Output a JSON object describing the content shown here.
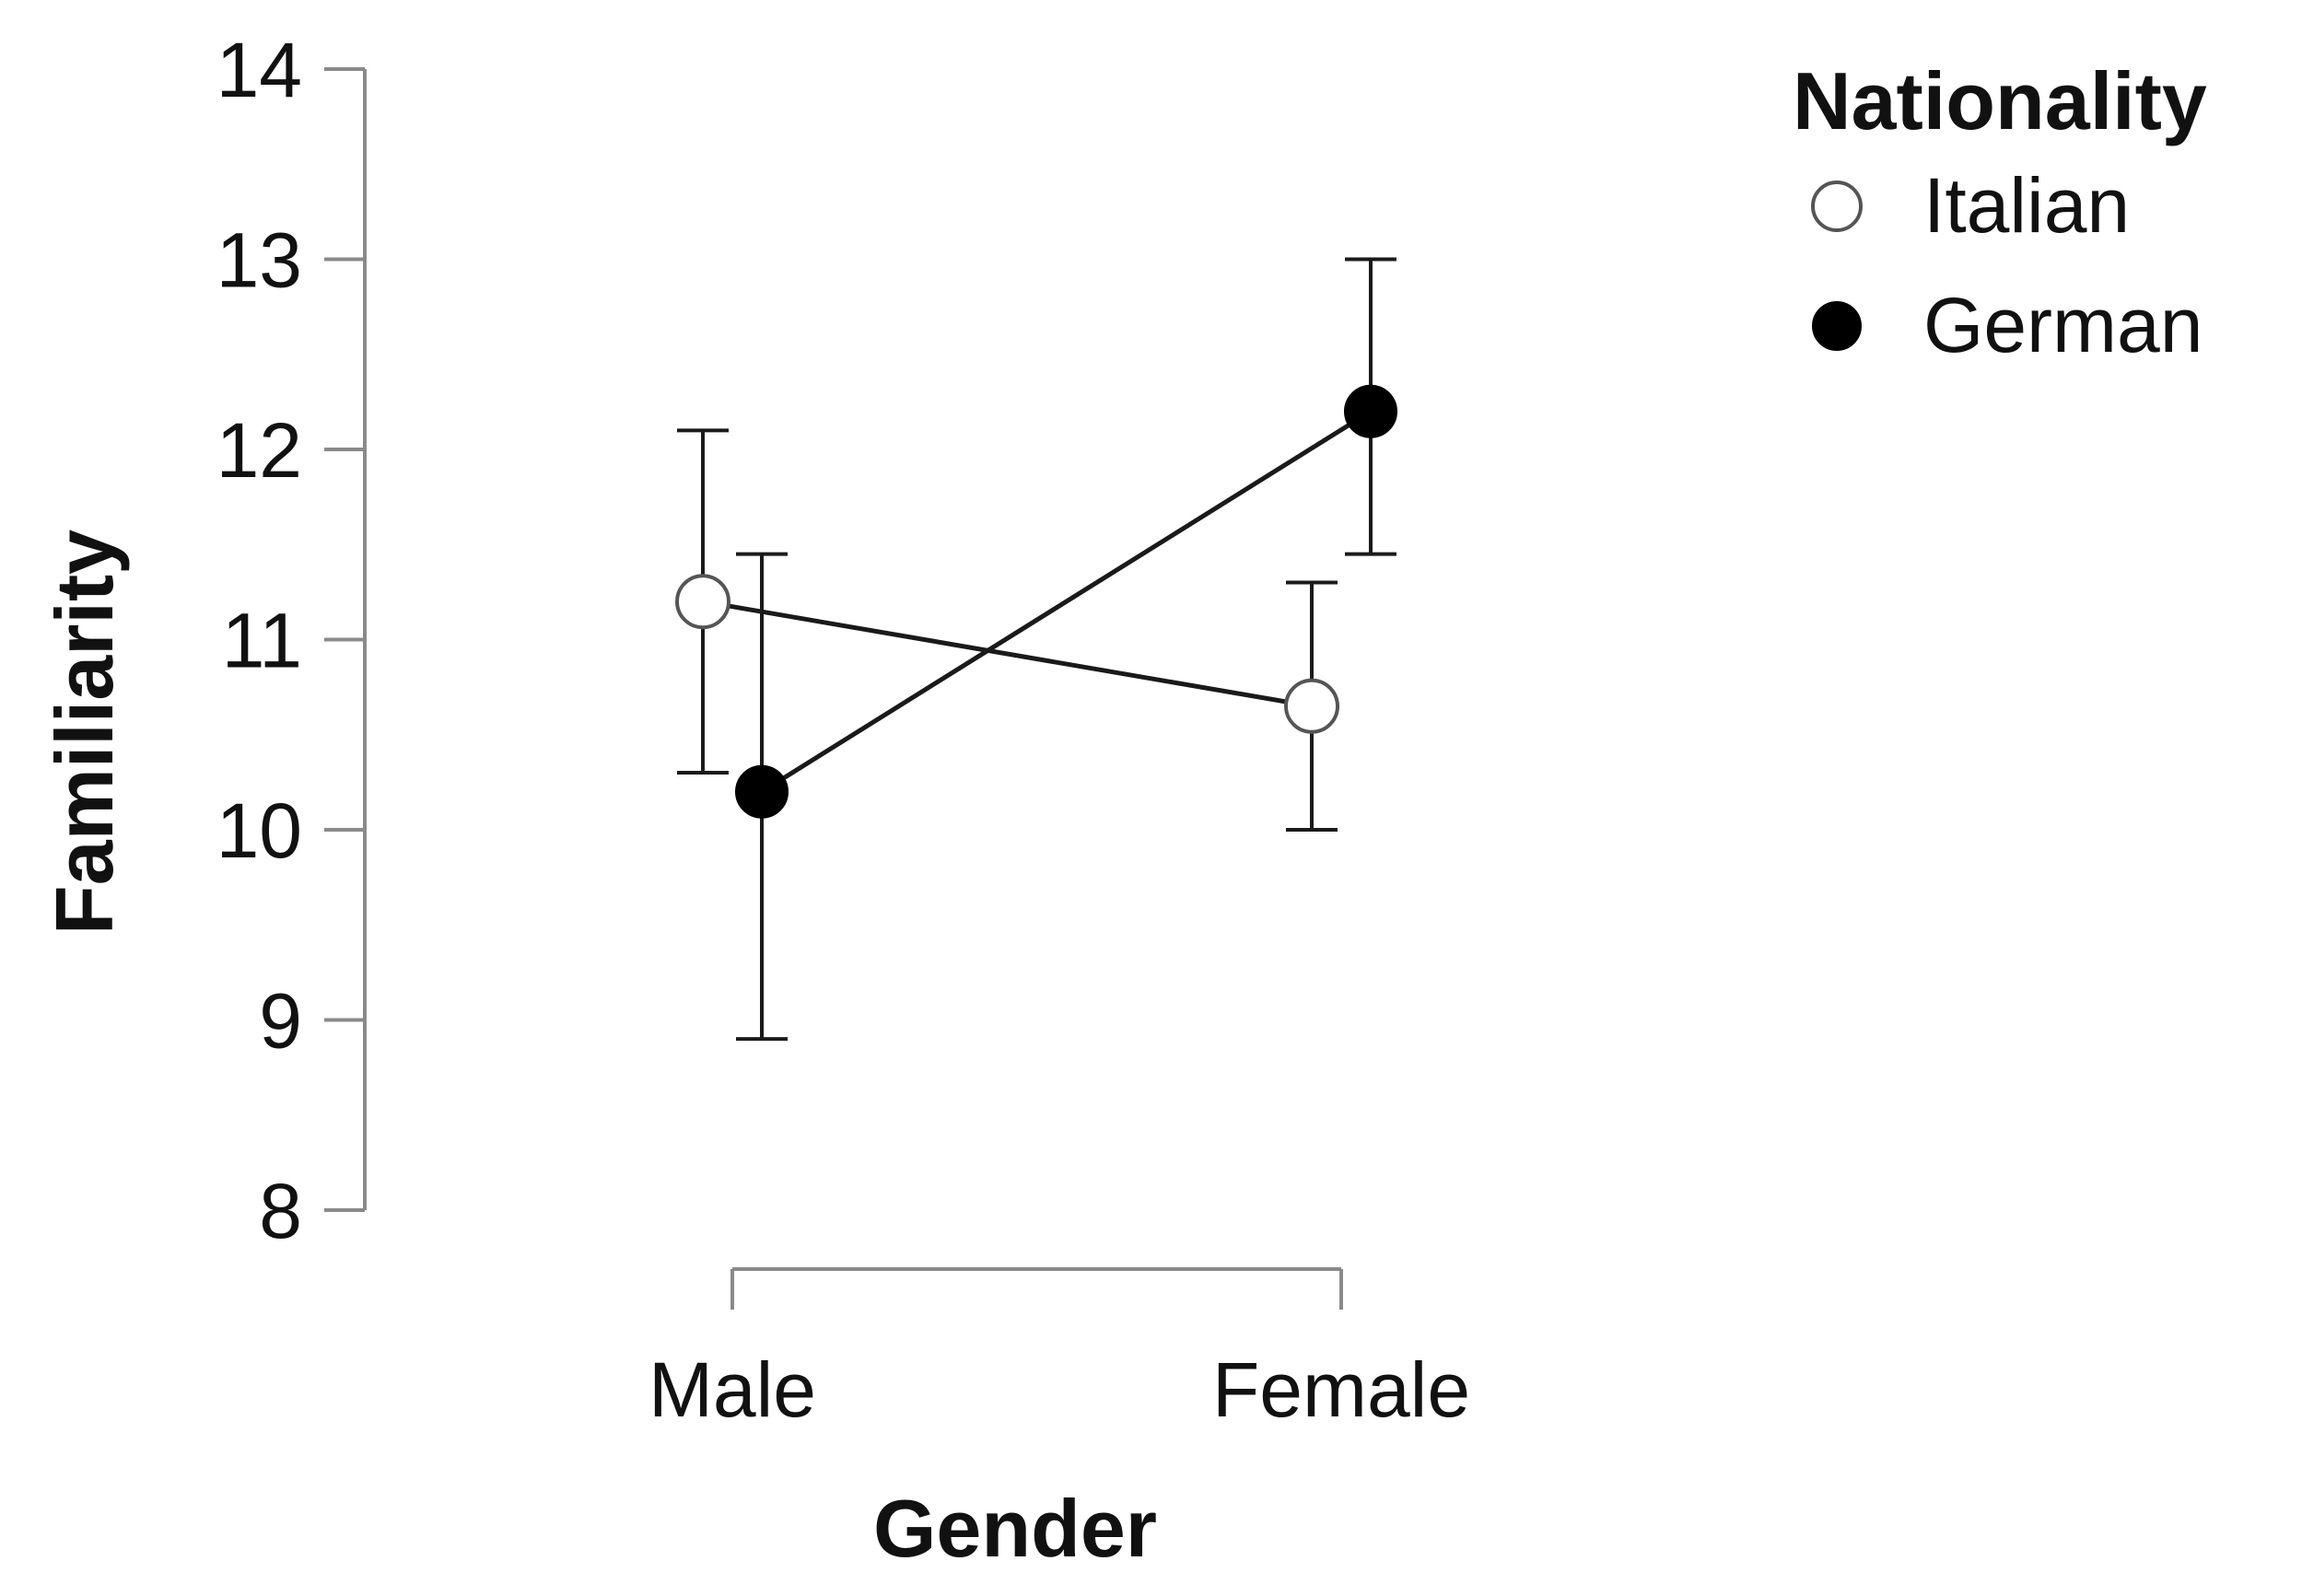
{
  "chart_data": {
    "type": "line",
    "title": "",
    "xlabel": "Gender",
    "ylabel": "Familiarity",
    "categories": [
      "Male",
      "Female"
    ],
    "ylim": [
      8,
      14
    ],
    "yticks": [
      "8",
      "9",
      "10",
      "11",
      "12",
      "13",
      "14"
    ],
    "grid": false,
    "legend": {
      "title": "Nationality",
      "placement": "top-right"
    },
    "series": [
      {
        "name": "Italian",
        "marker": "open-circle",
        "values": [
          11.2,
          10.65
        ],
        "error_low": [
          10.3,
          10.0
        ],
        "error_high": [
          12.1,
          11.3
        ]
      },
      {
        "name": "German",
        "marker": "filled-circle",
        "values": [
          10.2,
          12.2
        ],
        "error_low": [
          8.9,
          11.45
        ],
        "error_high": [
          11.45,
          13.0
        ]
      }
    ],
    "colors": {
      "line": "#1a1a1a",
      "axis": "#8a8a8a",
      "open_marker_fill": "#ffffff",
      "filled_marker_fill": "#000000"
    }
  }
}
